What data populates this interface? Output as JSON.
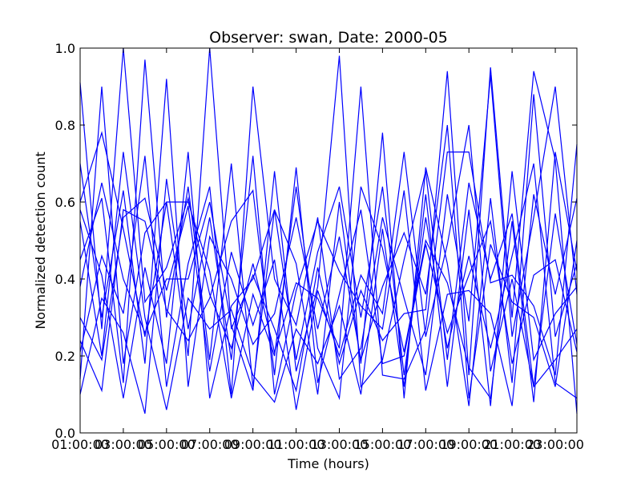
{
  "chart_data": {
    "type": "line",
    "title": "Observer: swan, Date: 2000-05",
    "xlabel": "Time (hours)",
    "ylabel": "Normalized detection count",
    "x_unit": "hours",
    "xlim": [
      1,
      24
    ],
    "ylim": [
      0,
      1
    ],
    "x_ticks": [
      1,
      3,
      5,
      7,
      9,
      11,
      13,
      15,
      17,
      19,
      21,
      23
    ],
    "x_tick_labels": [
      "01:00:00",
      "03:00:00",
      "05:00:00",
      "07:00:00",
      "09:00:00",
      "11:00:00",
      "13:00:00",
      "15:00:00",
      "17:00:00",
      "19:00:00",
      "21:00:00",
      "23:00:00"
    ],
    "y_ticks": [
      0.0,
      0.2,
      0.4,
      0.6,
      0.8,
      1.0
    ],
    "y_tick_labels": [
      "0.0",
      "0.2",
      "0.4",
      "0.6",
      "0.8",
      "1.0"
    ],
    "grid": false,
    "legend": "none",
    "line_color": "#0000ff",
    "x": [
      1,
      2,
      3,
      4,
      5,
      6,
      7,
      8,
      9,
      10,
      11,
      12,
      13,
      14,
      15,
      16,
      17,
      18,
      19,
      20,
      21,
      22,
      23,
      24
    ],
    "series": [
      {
        "values": [
          0.91,
          0.27,
          1.0,
          0.34,
          0.43,
          0.61,
          0.36,
          0.22,
          0.44,
          0.21,
          0.39,
          0.35,
          0.22,
          0.9,
          0.15,
          0.14,
          0.27,
          0.73,
          0.73,
          0.39,
          0.41,
          0.33,
          0.15,
          0.75
        ]
      },
      {
        "values": [
          0.6,
          0.78,
          0.53,
          0.25,
          0.6,
          0.2,
          1.0,
          0.27,
          0.41,
          0.27,
          0.11,
          0.43,
          0.18,
          0.37,
          0.24,
          0.31,
          0.32,
          0.94,
          0.15,
          0.95,
          0.3,
          0.94,
          0.71,
          0.05
        ]
      },
      {
        "values": [
          0.14,
          0.9,
          0.18,
          0.52,
          0.6,
          0.6,
          0.42,
          0.09,
          0.36,
          0.2,
          0.64,
          0.22,
          0.09,
          0.64,
          0.48,
          0.21,
          0.5,
          0.39,
          0.17,
          0.09,
          0.55,
          0.08,
          0.73,
          0.42
        ]
      },
      {
        "values": [
          0.55,
          0.2,
          0.73,
          0.3,
          0.06,
          0.35,
          0.27,
          0.32,
          0.15,
          0.08,
          0.27,
          0.18,
          0.33,
          0.1,
          0.53,
          0.12,
          0.62,
          0.12,
          0.58,
          0.07,
          0.68,
          0.19,
          0.31,
          0.38
        ]
      },
      {
        "values": [
          0.45,
          0.61,
          0.13,
          0.97,
          0.3,
          0.64,
          0.19,
          0.7,
          0.12,
          0.58,
          0.44,
          0.1,
          0.6,
          0.18,
          0.78,
          0.09,
          0.69,
          0.44,
          0.07,
          0.61,
          0.13,
          0.88,
          0.25,
          0.44
        ]
      },
      {
        "values": [
          0.21,
          0.46,
          0.31,
          0.72,
          0.12,
          0.44,
          0.64,
          0.1,
          0.9,
          0.4,
          0.28,
          0.56,
          0.14,
          0.22,
          0.56,
          0.35,
          0.15,
          0.62,
          0.29,
          0.93,
          0.25,
          0.56,
          0.9,
          0.36
        ]
      },
      {
        "values": [
          0.3,
          0.19,
          0.56,
          0.61,
          0.37,
          0.59,
          0.16,
          0.47,
          0.28,
          0.45,
          0.06,
          0.37,
          0.2,
          0.41,
          0.31,
          0.73,
          0.25,
          0.49,
          0.8,
          0.16,
          0.4,
          0.12,
          0.57,
          0.23
        ]
      },
      {
        "values": [
          0.1,
          0.35,
          0.26,
          0.05,
          0.66,
          0.27,
          0.56,
          0.19,
          0.72,
          0.1,
          0.37,
          0.55,
          0.42,
          0.33,
          0.27,
          0.63,
          0.11,
          0.36,
          0.37,
          0.31,
          0.07,
          0.62,
          0.36,
          0.61
        ]
      },
      {
        "values": [
          0.38,
          0.65,
          0.4,
          0.26,
          0.4,
          0.4,
          0.6,
          0.28,
          0.11,
          0.68,
          0.16,
          0.38,
          0.98,
          0.12,
          0.19,
          0.45,
          0.68,
          0.19,
          0.65,
          0.4,
          0.57,
          0.12,
          0.19,
          0.27
        ]
      },
      {
        "values": [
          0.7,
          0.3,
          0.63,
          0.18,
          0.92,
          0.12,
          0.51,
          0.4,
          0.23,
          0.31,
          0.56,
          0.27,
          0.51,
          0.19,
          0.38,
          0.52,
          0.36,
          0.8,
          0.09,
          0.49,
          0.34,
          0.3,
          0.12,
          0.5
        ]
      },
      {
        "values": [
          0.24,
          0.11,
          0.58,
          0.55,
          0.32,
          0.24,
          0.35,
          0.55,
          0.63,
          0.15,
          0.69,
          0.13,
          0.36,
          0.58,
          0.18,
          0.2,
          0.49,
          0.26,
          0.41,
          0.55,
          0.18,
          0.41,
          0.45,
          0.21
        ]
      },
      {
        "values": [
          0.58,
          0.41,
          0.09,
          0.43,
          0.18,
          0.73,
          0.09,
          0.33,
          0.4,
          0.58,
          0.19,
          0.47,
          0.64,
          0.3,
          0.64,
          0.15,
          0.56,
          0.22,
          0.46,
          0.22,
          0.46,
          0.7,
          0.13,
          0.09
        ]
      }
    ]
  }
}
